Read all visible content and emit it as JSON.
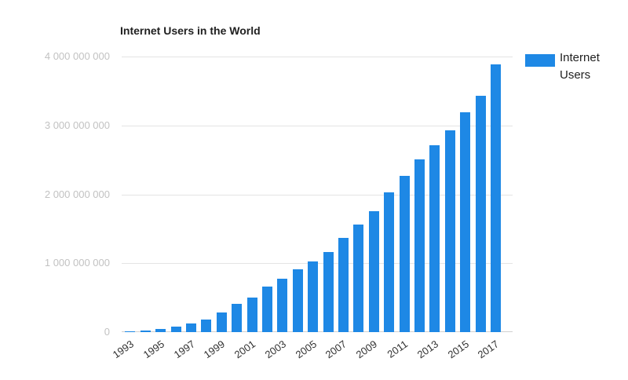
{
  "chart_data": {
    "type": "bar",
    "title": "Internet Users in the World",
    "series_name": "Internet Users",
    "categories": [
      "1993",
      "1994",
      "1995",
      "1996",
      "1997",
      "1998",
      "1999",
      "2000",
      "2001",
      "2002",
      "2003",
      "2004",
      "2005",
      "2006",
      "2007",
      "2008",
      "2009",
      "2010",
      "2011",
      "2012",
      "2013",
      "2014",
      "2015",
      "2016",
      "2017"
    ],
    "values": [
      14000000,
      26000000,
      45000000,
      77000000,
      121000000,
      188000000,
      281000000,
      413000000,
      501000000,
      663000000,
      779000000,
      910000000,
      1030000000,
      1158000000,
      1373000000,
      1562000000,
      1752000000,
      2034000000,
      2272000000,
      2512000000,
      2712000000,
      2925000000,
      3186000000,
      3425000000,
      3886000000
    ],
    "ylim": [
      0,
      4000000000
    ],
    "y_tick_labels": [
      "0",
      "1 000 000 000",
      "2 000 000 000",
      "3 000 000 000",
      "4 000 000 000"
    ],
    "x_tick_labels": [
      "1993",
      "1995",
      "1997",
      "1999",
      "2001",
      "2003",
      "2005",
      "2007",
      "2009",
      "2011",
      "2013",
      "2015",
      "2017"
    ],
    "grid": true,
    "legend_position": "right",
    "bar_color": "#1e88e5"
  },
  "colors": {
    "bar": "#1e88e5",
    "gridline": "#e4e4e4",
    "baseline": "#d0d0d0",
    "title_text": "#212121",
    "y_tick_text": "#c2c2c2",
    "x_tick_text": "#333333",
    "legend_text": "#212121",
    "background": "#ffffff"
  }
}
